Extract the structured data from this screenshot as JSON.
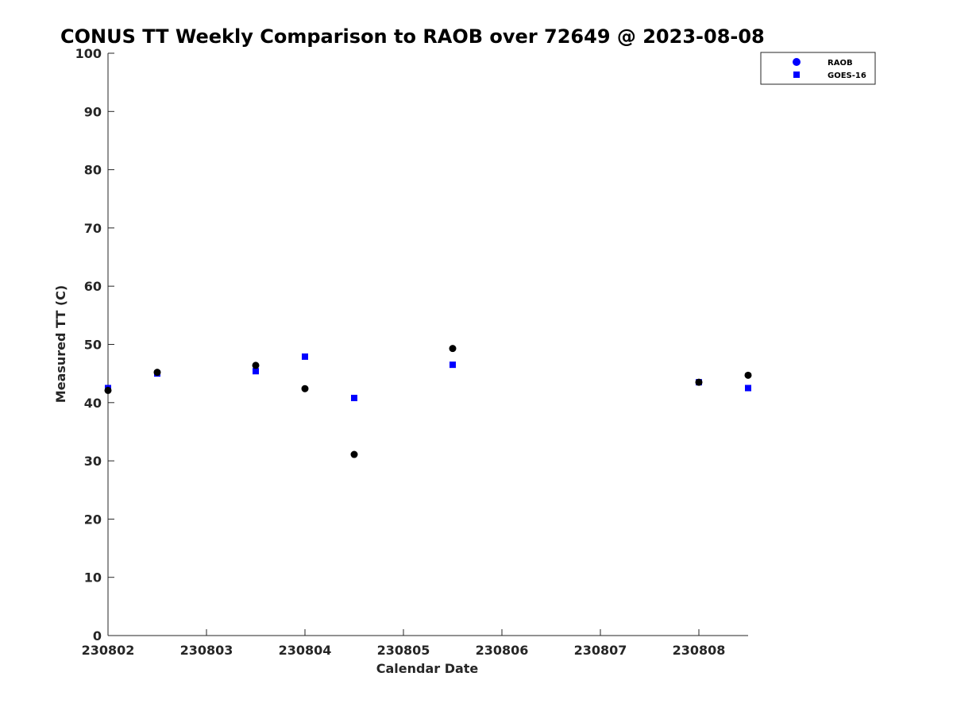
{
  "chart_data": {
    "type": "scatter",
    "title": "CONUS TT Weekly Comparison to RAOB over 72649 @ 2023-08-08",
    "xlabel": "Calendar Date",
    "ylabel": "Measured TT (C)",
    "xlim": [
      230802,
      230808.5
    ],
    "ylim": [
      0,
      100
    ],
    "x_ticks": [
      "230802",
      "230803",
      "230804",
      "230805",
      "230806",
      "230807",
      "230808"
    ],
    "y_ticks": [
      "0",
      "10",
      "20",
      "30",
      "40",
      "50",
      "60",
      "70",
      "80",
      "90",
      "100"
    ],
    "legend_position": "top-right",
    "grid": false,
    "series": [
      {
        "name": "RAOB",
        "marker": "circle",
        "color": "#000000",
        "legend_color": "#0000ff",
        "x": [
          230802.0,
          230802.5,
          230803.5,
          230804.0,
          230804.5,
          230805.5,
          230808.0,
          230808.5
        ],
        "y": [
          42.1,
          45.2,
          46.4,
          42.4,
          31.1,
          49.3,
          43.5,
          44.7
        ]
      },
      {
        "name": "GOES-16",
        "marker": "square",
        "color": "#0000ff",
        "x": [
          230802.0,
          230802.5,
          230803.5,
          230804.0,
          230804.5,
          230805.5,
          230808.0,
          230808.5
        ],
        "y": [
          42.5,
          45.0,
          45.4,
          47.9,
          40.8,
          46.5,
          43.5,
          42.5
        ]
      }
    ]
  }
}
